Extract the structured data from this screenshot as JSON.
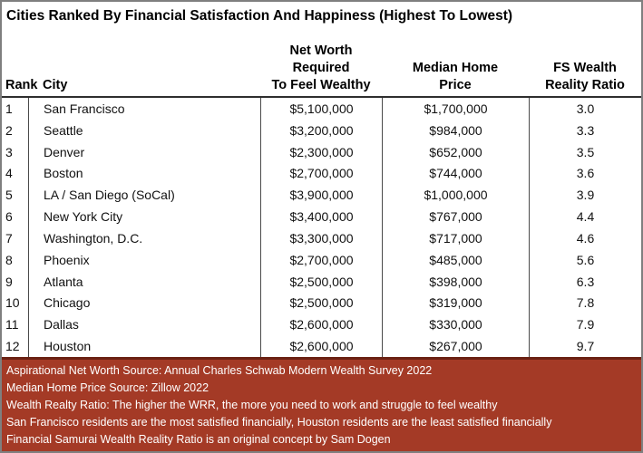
{
  "title": "Cities Ranked By Financial Satisfaction And Happiness (Highest To Lowest)",
  "colors": {
    "footer_bg": "#A43A26",
    "footer_top_border": "#6B2113",
    "grid_line": "#4A4A4A",
    "outer_border": "#7F7F7F",
    "text": "#000000",
    "footer_text": "#FFFFFF"
  },
  "table": {
    "columns": [
      {
        "label": "Rank"
      },
      {
        "label": "City"
      },
      {
        "line1": "Net Worth Required",
        "line2": "To Feel Wealthy"
      },
      {
        "line1": "Median Home",
        "line2": "Price"
      },
      {
        "line1": "FS Wealth",
        "line2": "Reality Ratio"
      }
    ],
    "rows": [
      {
        "rank": "1",
        "city": "San Francisco",
        "net_worth": "$5,100,000",
        "median_home": "$1,700,000",
        "ratio": "3.0"
      },
      {
        "rank": "2",
        "city": "Seattle",
        "net_worth": "$3,200,000",
        "median_home": "$984,000",
        "ratio": "3.3"
      },
      {
        "rank": "3",
        "city": "Denver",
        "net_worth": "$2,300,000",
        "median_home": "$652,000",
        "ratio": "3.5"
      },
      {
        "rank": "4",
        "city": "Boston",
        "net_worth": "$2,700,000",
        "median_home": "$744,000",
        "ratio": "3.6"
      },
      {
        "rank": "5",
        "city": "LA / San Diego (SoCal)",
        "net_worth": "$3,900,000",
        "median_home": "$1,000,000",
        "ratio": "3.9"
      },
      {
        "rank": "6",
        "city": "New York City",
        "net_worth": "$3,400,000",
        "median_home": "$767,000",
        "ratio": "4.4"
      },
      {
        "rank": "7",
        "city": "Washington, D.C.",
        "net_worth": "$3,300,000",
        "median_home": "$717,000",
        "ratio": "4.6"
      },
      {
        "rank": "8",
        "city": "Phoenix",
        "net_worth": "$2,700,000",
        "median_home": "$485,000",
        "ratio": "5.6"
      },
      {
        "rank": "9",
        "city": "Atlanta",
        "net_worth": "$2,500,000",
        "median_home": "$398,000",
        "ratio": "6.3"
      },
      {
        "rank": "10",
        "city": "Chicago",
        "net_worth": "$2,500,000",
        "median_home": "$319,000",
        "ratio": "7.8"
      },
      {
        "rank": "11",
        "city": "Dallas",
        "net_worth": "$2,600,000",
        "median_home": "$330,000",
        "ratio": "7.9"
      },
      {
        "rank": "12",
        "city": "Houston",
        "net_worth": "$2,600,000",
        "median_home": "$267,000",
        "ratio": "9.7"
      }
    ]
  },
  "footnotes": [
    "Aspirational Net Worth Source: Annual Charles Schwab Modern Wealth Survey 2022",
    "Median Home Price Source: Zillow 2022",
    "Wealth Realty Ratio: The higher the WRR, the more you need to work and struggle to feel wealthy",
    "San Francisco residents are the most satisfied financially, Houston residents are the least satisfied financially",
    "Financial Samurai Wealth Reality Ratio is an original concept by Sam Dogen"
  ],
  "chart_data": {
    "type": "table",
    "title": "Cities Ranked By Financial Satisfaction And Happiness (Highest To Lowest)",
    "columns": [
      "Rank",
      "City",
      "Net Worth Required To Feel Wealthy",
      "Median Home Price",
      "FS Wealth Reality Ratio"
    ],
    "rows": [
      [
        1,
        "San Francisco",
        5100000,
        1700000,
        3.0
      ],
      [
        2,
        "Seattle",
        3200000,
        984000,
        3.3
      ],
      [
        3,
        "Denver",
        2300000,
        652000,
        3.5
      ],
      [
        4,
        "Boston",
        2700000,
        744000,
        3.6
      ],
      [
        5,
        "LA / San Diego (SoCal)",
        3900000,
        1000000,
        3.9
      ],
      [
        6,
        "New York City",
        3400000,
        767000,
        4.4
      ],
      [
        7,
        "Washington, D.C.",
        3300000,
        717000,
        4.6
      ],
      [
        8,
        "Phoenix",
        2700000,
        485000,
        5.6
      ],
      [
        9,
        "Atlanta",
        2500000,
        398000,
        6.3
      ],
      [
        10,
        "Chicago",
        2500000,
        319000,
        7.8
      ],
      [
        11,
        "Dallas",
        2600000,
        330000,
        7.9
      ],
      [
        12,
        "Houston",
        2600000,
        267000,
        9.7
      ]
    ],
    "notes": [
      "Aspirational Net Worth Source: Annual Charles Schwab Modern Wealth Survey 2022",
      "Median Home Price Source: Zillow 2022",
      "Wealth Realty Ratio: The higher the WRR, the more you need to work and struggle to feel wealthy",
      "San Francisco residents are the most satisfied financially, Houston residents are the least satisfied financially",
      "Financial Samurai Wealth Reality Ratio is an original concept by Sam Dogen"
    ]
  }
}
